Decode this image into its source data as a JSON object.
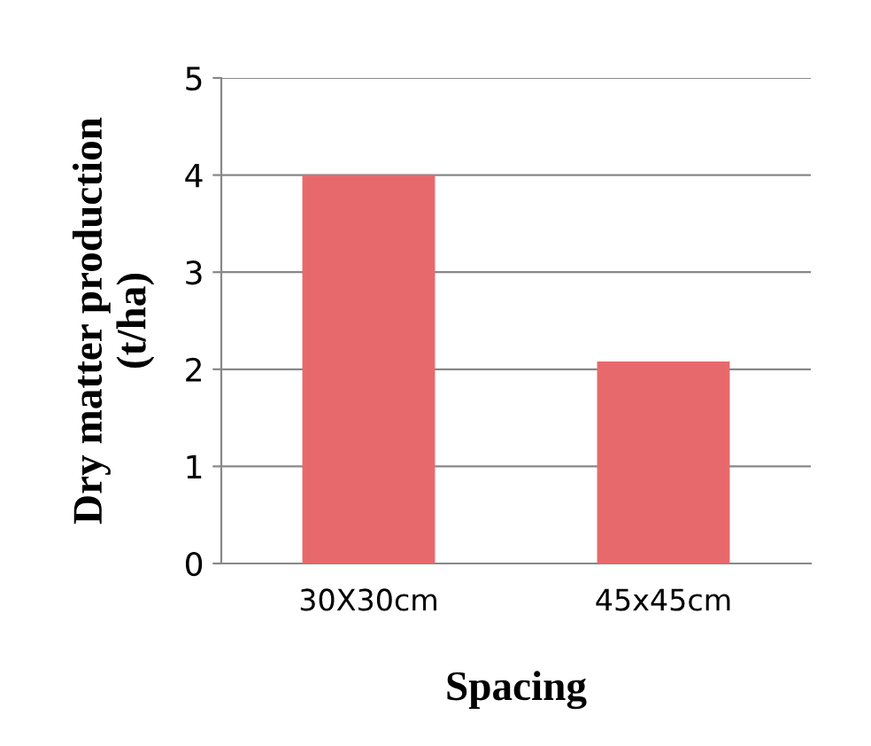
{
  "chart_data": {
    "type": "bar",
    "xlabel": "Spacing",
    "ylabel": "Dry matter production\n(t/ha)",
    "categories": [
      "30X30cm",
      "45x45cm"
    ],
    "values": [
      4.0,
      2.08
    ],
    "color": "#e8696b",
    "ylim": [
      0,
      5
    ],
    "yticks": [
      0,
      1,
      2,
      3,
      4,
      5
    ],
    "grid": "y"
  }
}
